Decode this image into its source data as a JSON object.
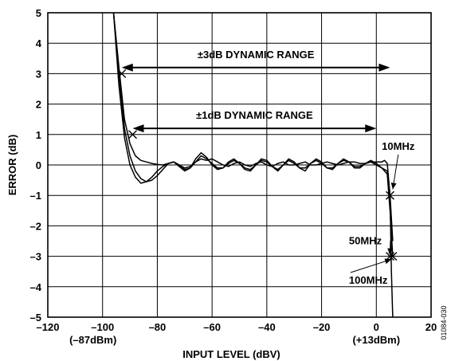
{
  "chart_data": {
    "type": "line",
    "xlabel": "INPUT LEVEL (dBV)",
    "ylabel": "ERROR (dB)",
    "xlim": [
      -120,
      20
    ],
    "ylim": [
      -5,
      5
    ],
    "x_ticks": [
      -120,
      -100,
      -80,
      -60,
      -40,
      -20,
      0,
      20
    ],
    "y_ticks": [
      5,
      4,
      3,
      2,
      1,
      0,
      -1,
      -2,
      -3,
      -4,
      -5
    ],
    "x_tick_labels": [
      "–120",
      "–100",
      "–80",
      "–60",
      "–40",
      "–20",
      "0",
      "20"
    ],
    "y_tick_labels": [
      "5",
      "4",
      "3",
      "2",
      "1",
      "0",
      "–1",
      "–2",
      "–3",
      "–4",
      "–5"
    ],
    "x_sublabels": [
      {
        "x": -100,
        "text": "(–87dBm)"
      },
      {
        "x": 0,
        "text": "(+13dBm)"
      }
    ],
    "grid": true,
    "series": [
      {
        "name": "10MHz",
        "x": [
          -96,
          -94,
          -92,
          -90,
          -88,
          -86,
          -84,
          -82,
          -80,
          -78,
          -76,
          -74,
          -72,
          -70,
          -68,
          -66,
          -64,
          -62,
          -60,
          -58,
          -56,
          -54,
          -52,
          -50,
          -48,
          -46,
          -44,
          -42,
          -40,
          -38,
          -36,
          -34,
          -32,
          -30,
          -28,
          -26,
          -24,
          -22,
          -20,
          -18,
          -16,
          -14,
          -12,
          -10,
          -8,
          -6,
          -4,
          -2,
          0,
          2,
          3,
          4,
          5,
          6
        ],
        "y": [
          5,
          3.2,
          1.5,
          0.7,
          0.3,
          0.15,
          0.1,
          0.05,
          0.02,
          0.0,
          0.05,
          0.1,
          0.0,
          -0.1,
          -0.05,
          0.1,
          0.2,
          0.15,
          0.2,
          0.1,
          0.0,
          -0.05,
          0.05,
          0.1,
          0.0,
          -0.05,
          0.05,
          0.1,
          0.0,
          -0.05,
          0.05,
          0.1,
          0.0,
          0.0,
          0.05,
          0.1,
          0.0,
          0.0,
          0.05,
          0.1,
          0.05,
          0.0,
          0.05,
          0.1,
          0.1,
          0.05,
          0.05,
          0.1,
          0.1,
          0.1,
          0.15,
          0.05,
          -1.0,
          -2.5
        ]
      },
      {
        "name": "50MHz",
        "x": [
          -96,
          -94,
          -92,
          -90,
          -88,
          -86,
          -84,
          -82,
          -80,
          -78,
          -76,
          -74,
          -72,
          -70,
          -68,
          -66,
          -64,
          -62,
          -60,
          -58,
          -56,
          -54,
          -52,
          -50,
          -48,
          -46,
          -44,
          -42,
          -40,
          -38,
          -36,
          -34,
          -32,
          -30,
          -28,
          -26,
          -24,
          -22,
          -20,
          -18,
          -16,
          -14,
          -12,
          -10,
          -8,
          -6,
          -4,
          -2,
          0,
          2,
          4,
          5,
          6
        ],
        "y": [
          5,
          3.0,
          1.2,
          0.3,
          -0.2,
          -0.45,
          -0.55,
          -0.5,
          -0.35,
          -0.15,
          0.05,
          0.1,
          0.0,
          -0.15,
          -0.1,
          0.1,
          0.3,
          0.2,
          0.05,
          -0.1,
          -0.1,
          0.05,
          0.15,
          0.05,
          -0.1,
          -0.15,
          0.0,
          0.15,
          0.1,
          -0.05,
          -0.15,
          0.0,
          0.15,
          0.05,
          -0.1,
          -0.1,
          0.05,
          0.15,
          0.05,
          -0.1,
          -0.1,
          0.05,
          0.15,
          0.1,
          -0.05,
          -0.05,
          0.05,
          0.1,
          0.0,
          -0.1,
          -0.3,
          -1.5,
          -3.0
        ]
      },
      {
        "name": "100MHz",
        "x": [
          -96,
          -94,
          -92,
          -90,
          -88,
          -86,
          -84,
          -82,
          -80,
          -78,
          -76,
          -74,
          -72,
          -70,
          -68,
          -66,
          -64,
          -62,
          -60,
          -58,
          -56,
          -54,
          -52,
          -50,
          -48,
          -46,
          -44,
          -42,
          -40,
          -38,
          -36,
          -34,
          -32,
          -30,
          -28,
          -26,
          -24,
          -22,
          -20,
          -18,
          -16,
          -14,
          -12,
          -10,
          -8,
          -6,
          -4,
          -2,
          0,
          2,
          4,
          5,
          5.5,
          6
        ],
        "y": [
          5,
          2.6,
          0.9,
          0.0,
          -0.4,
          -0.6,
          -0.55,
          -0.4,
          -0.2,
          -0.05,
          0.05,
          0.1,
          -0.05,
          -0.2,
          -0.1,
          0.2,
          0.4,
          0.25,
          0.0,
          -0.15,
          -0.1,
          0.1,
          0.2,
          0.05,
          -0.15,
          -0.2,
          0.0,
          0.2,
          0.15,
          -0.05,
          -0.2,
          0.0,
          0.2,
          0.1,
          -0.1,
          -0.2,
          0.05,
          0.2,
          0.1,
          -0.1,
          -0.15,
          0.05,
          0.2,
          0.1,
          -0.1,
          -0.1,
          0.05,
          0.15,
          0.05,
          -0.1,
          -0.2,
          -1.0,
          -3.5,
          -5.0
        ]
      }
    ],
    "markers": [
      {
        "x": -93,
        "y": 3
      },
      {
        "x": -89,
        "y": 1
      },
      {
        "x": 5,
        "y": -1
      },
      {
        "x": 6,
        "y": -3
      },
      {
        "x": 5,
        "y": -3
      }
    ],
    "annotations": {
      "range_3db": {
        "label": "±3dB DYNAMIC RANGE",
        "x_start": -93,
        "x_end": 5,
        "y": 3.2
      },
      "range_1db": {
        "label": "±1dB DYNAMIC RANGE",
        "x_start": -89,
        "x_end": 0,
        "y": 1.2
      },
      "series_labels": [
        {
          "text": "10MHz",
          "label_x": 8,
          "label_y": 0.5,
          "point_x": 6,
          "point_y": -0.8
        },
        {
          "text": "50MHz",
          "label_x": -10,
          "label_y": -2.6,
          "point_x": 5,
          "point_y": -2.95
        },
        {
          "text": "100MHz",
          "label_x": -10,
          "label_y": -3.9,
          "point_x": 5.5,
          "point_y": -3.1
        }
      ]
    },
    "figure_id": "01084-030"
  }
}
